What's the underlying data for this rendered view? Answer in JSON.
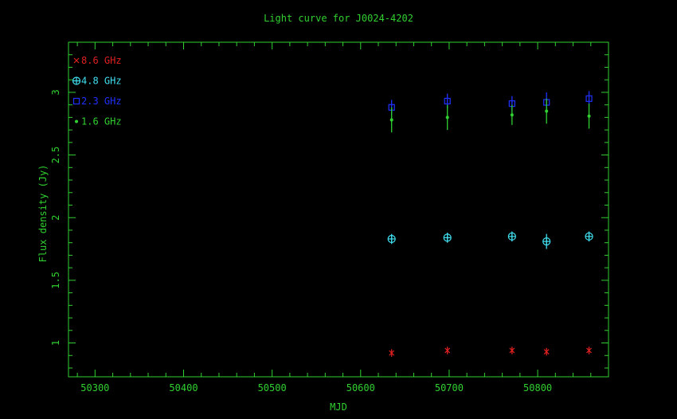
{
  "chart_data": {
    "type": "scatter",
    "title": "Light curve for J0024-4202",
    "xlabel": "MJD",
    "ylabel": "Flux density (Jy)",
    "xlim": [
      50270,
      50880
    ],
    "ylim": [
      0.73,
      3.4
    ],
    "x_ticks": [
      50300,
      50400,
      50500,
      50600,
      50700,
      50800
    ],
    "y_ticks": [
      1,
      1.5,
      2,
      2.5,
      3
    ],
    "x_tick_labels": [
      "50300",
      "50400",
      "50500",
      "50600",
      "50700",
      "50800"
    ],
    "y_tick_labels": [
      "1",
      "1.5",
      "2",
      "2.5",
      "3"
    ],
    "grid": false,
    "legend_position": "top-left",
    "series": [
      {
        "name": "8.6 GHz",
        "color": "#e02020",
        "marker": "x",
        "x": [
          50635,
          50698,
          50771,
          50810,
          50858
        ],
        "y": [
          0.92,
          0.94,
          0.94,
          0.93,
          0.94
        ],
        "err": [
          0.03,
          0.03,
          0.03,
          0.03,
          0.03
        ]
      },
      {
        "name": "4.8 GHz",
        "color": "#40e0f0",
        "marker": "circle-plus",
        "x": [
          50635,
          50698,
          50771,
          50810,
          50858
        ],
        "y": [
          1.83,
          1.84,
          1.85,
          1.81,
          1.85
        ],
        "err": [
          0.04,
          0.04,
          0.04,
          0.06,
          0.04
        ]
      },
      {
        "name": "2.3 GHz",
        "color": "#2030ff",
        "marker": "square",
        "x": [
          50635,
          50698,
          50771,
          50810,
          50858
        ],
        "y": [
          2.88,
          2.93,
          2.91,
          2.92,
          2.95
        ],
        "err": [
          0.06,
          0.06,
          0.06,
          0.08,
          0.06
        ]
      },
      {
        "name": "1.6 GHz",
        "color": "#30d030",
        "marker": "dot",
        "x": [
          50635,
          50698,
          50771,
          50810,
          50858
        ],
        "y": [
          2.78,
          2.8,
          2.82,
          2.85,
          2.81
        ],
        "err": [
          0.1,
          0.1,
          0.08,
          0.1,
          0.1
        ]
      }
    ]
  },
  "colors": {
    "axes": "#30d030",
    "title": "#30d030",
    "background": "#000000"
  }
}
